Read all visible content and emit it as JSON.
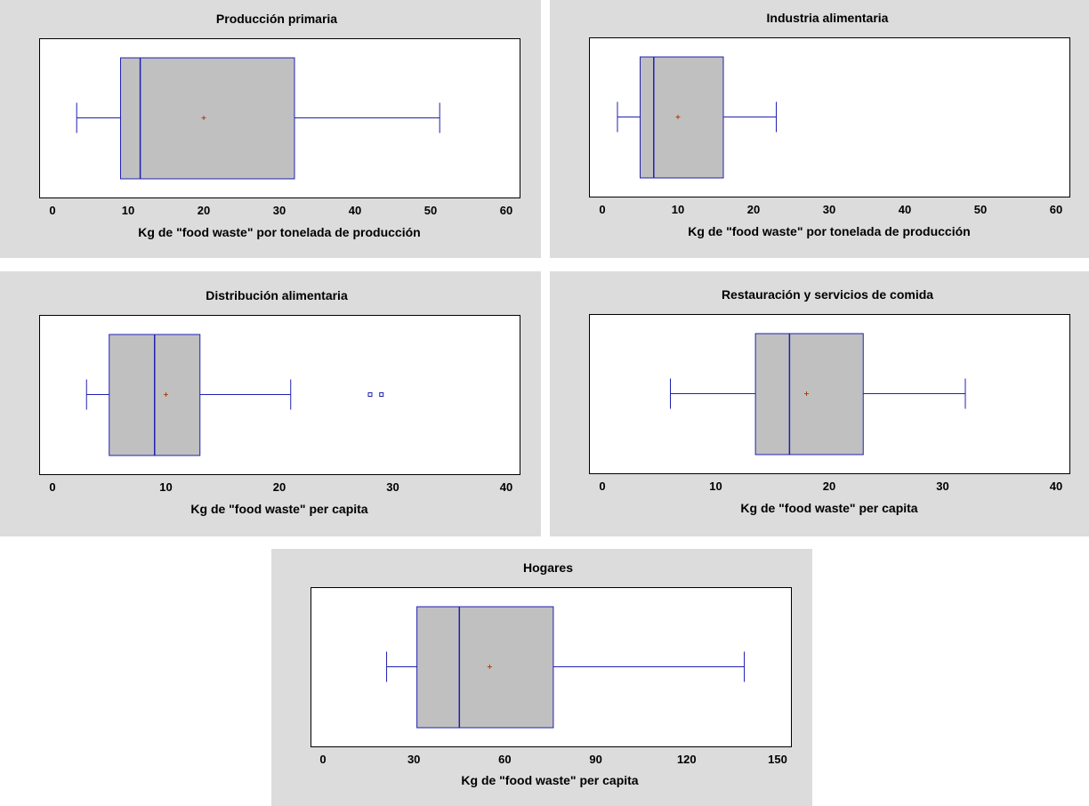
{
  "chart_data": [
    {
      "type": "boxplot",
      "title": "Producción primaria",
      "xlabel": "Kg de \"food waste\" por tonelada de producción",
      "xlim": [
        0,
        60
      ],
      "xticks": [
        "0",
        "10",
        "20",
        "30",
        "40",
        "50",
        "60"
      ],
      "tick_values": [
        0,
        10,
        20,
        30,
        40,
        50,
        60
      ],
      "whisker_low": 3.2,
      "q1": 9,
      "median": 11.6,
      "q3": 32,
      "whisker_high": 51.2,
      "mean": 20,
      "outliers": []
    },
    {
      "type": "boxplot",
      "title": "Industria alimentaria",
      "xlabel": "Kg de \"food waste\" por tonelada de producción",
      "xlim": [
        0,
        60
      ],
      "xticks": [
        "0",
        "10",
        "20",
        "30",
        "40",
        "50",
        "60"
      ],
      "tick_values": [
        0,
        10,
        20,
        30,
        40,
        50,
        60
      ],
      "whisker_low": 2,
      "q1": 5,
      "median": 6.8,
      "q3": 16,
      "whisker_high": 23,
      "mean": 10,
      "outliers": []
    },
    {
      "type": "boxplot",
      "title": "Distribución alimentaria",
      "xlabel": "Kg de \"food waste\" per capita",
      "xlim": [
        0,
        40
      ],
      "xticks": [
        "0",
        "10",
        "20",
        "30",
        "40"
      ],
      "tick_values": [
        0,
        10,
        20,
        30,
        40
      ],
      "whisker_low": 3,
      "q1": 5,
      "median": 9,
      "q3": 13,
      "whisker_high": 21,
      "mean": 10,
      "outliers": [
        28,
        29
      ]
    },
    {
      "type": "boxplot",
      "title": "Restauración y servicios de comida",
      "xlabel": "Kg de \"food waste\" per capita",
      "xlim": [
        0,
        40
      ],
      "xticks": [
        "0",
        "10",
        "20",
        "30",
        "40"
      ],
      "tick_values": [
        0,
        10,
        20,
        30,
        40
      ],
      "whisker_low": 6,
      "q1": 13.5,
      "median": 16.5,
      "q3": 23,
      "whisker_high": 32,
      "mean": 18,
      "outliers": []
    },
    {
      "type": "boxplot",
      "title": "Hogares",
      "xlabel": "Kg de \"food waste\" per capita",
      "xlim": [
        0,
        150
      ],
      "xticks": [
        "0",
        "30",
        "60",
        "90",
        "120",
        "150"
      ],
      "tick_values": [
        0,
        30,
        60,
        90,
        120,
        150
      ],
      "whisker_low": 21,
      "q1": 31,
      "median": 45,
      "q3": 76,
      "whisker_high": 139,
      "mean": 55,
      "outliers": []
    }
  ],
  "colors": {
    "panel_bg": "#dcdcdc",
    "plot_bg": "#ffffff",
    "box_fill": "#c0c0c0",
    "box_stroke": "#2020b0",
    "mean_marker": "#b04010",
    "axis": "#000000"
  }
}
